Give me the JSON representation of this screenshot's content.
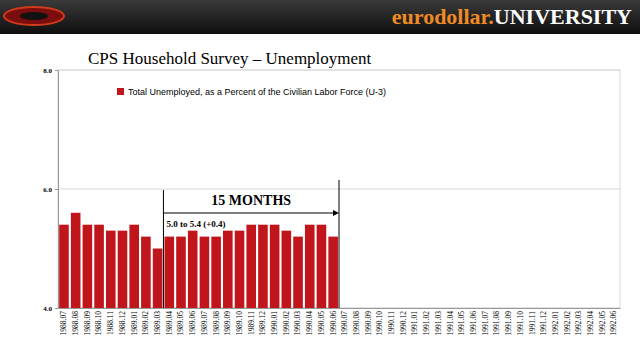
{
  "chart_data": {
    "type": "bar",
    "brand": "eurodollar.UNIVERSITY",
    "title": "CPS Household Survey – Unemployment",
    "categories": [
      "1988.07",
      "1988.08",
      "1988.09",
      "1988.10",
      "1988.11",
      "1988.12",
      "1989.01",
      "1989.02",
      "1989.03",
      "1989.04",
      "1989.05",
      "1989.06",
      "1989.07",
      "1989.08",
      "1989.09",
      "1989.10",
      "1989.11",
      "1989.12",
      "1990.01",
      "1990.02",
      "1990.03",
      "1990.04",
      "1990.05",
      "1990.06",
      "1990.07",
      "1990.08",
      "1990.09",
      "1990.10",
      "1990.11",
      "1990.12",
      "1991.01",
      "1991.02",
      "1991.03",
      "1991.04",
      "1991.05",
      "1991.06",
      "1991.07",
      "1991.08",
      "1991.09",
      "1991.10",
      "1991.11",
      "1991.12",
      "1992.01",
      "1992.02",
      "1992.03",
      "1992.04",
      "1992.05",
      "1992.06"
    ],
    "series": [
      {
        "name": "Total Unemployed, as a Percent of the Civilian Labor Force (U-3)",
        "color": "#c0161b",
        "values": [
          5.4,
          5.6,
          5.4,
          5.4,
          5.3,
          5.3,
          5.4,
          5.2,
          5.0,
          5.2,
          5.2,
          5.3,
          5.2,
          5.2,
          5.3,
          5.3,
          5.4,
          5.4,
          5.4,
          5.3,
          5.2,
          5.4,
          5.4,
          5.2,
          null,
          null,
          null,
          null,
          null,
          null,
          null,
          null,
          null,
          null,
          null,
          null,
          null,
          null,
          null,
          null,
          null,
          null,
          null,
          null,
          null,
          null,
          null,
          null
        ]
      }
    ],
    "ylim": [
      4,
      8
    ],
    "yticks": [
      {
        "value": 4,
        "label": "4.0"
      },
      {
        "value": 6,
        "label": "6.0"
      },
      {
        "value": 8,
        "label": "8.0"
      }
    ],
    "grid": true,
    "legend": "top-left",
    "annotation": {
      "text": "15 MONTHS",
      "detail": "5.0 to 5.4 (+0.4)",
      "span": [
        "1989.03",
        "1990.06"
      ]
    }
  }
}
